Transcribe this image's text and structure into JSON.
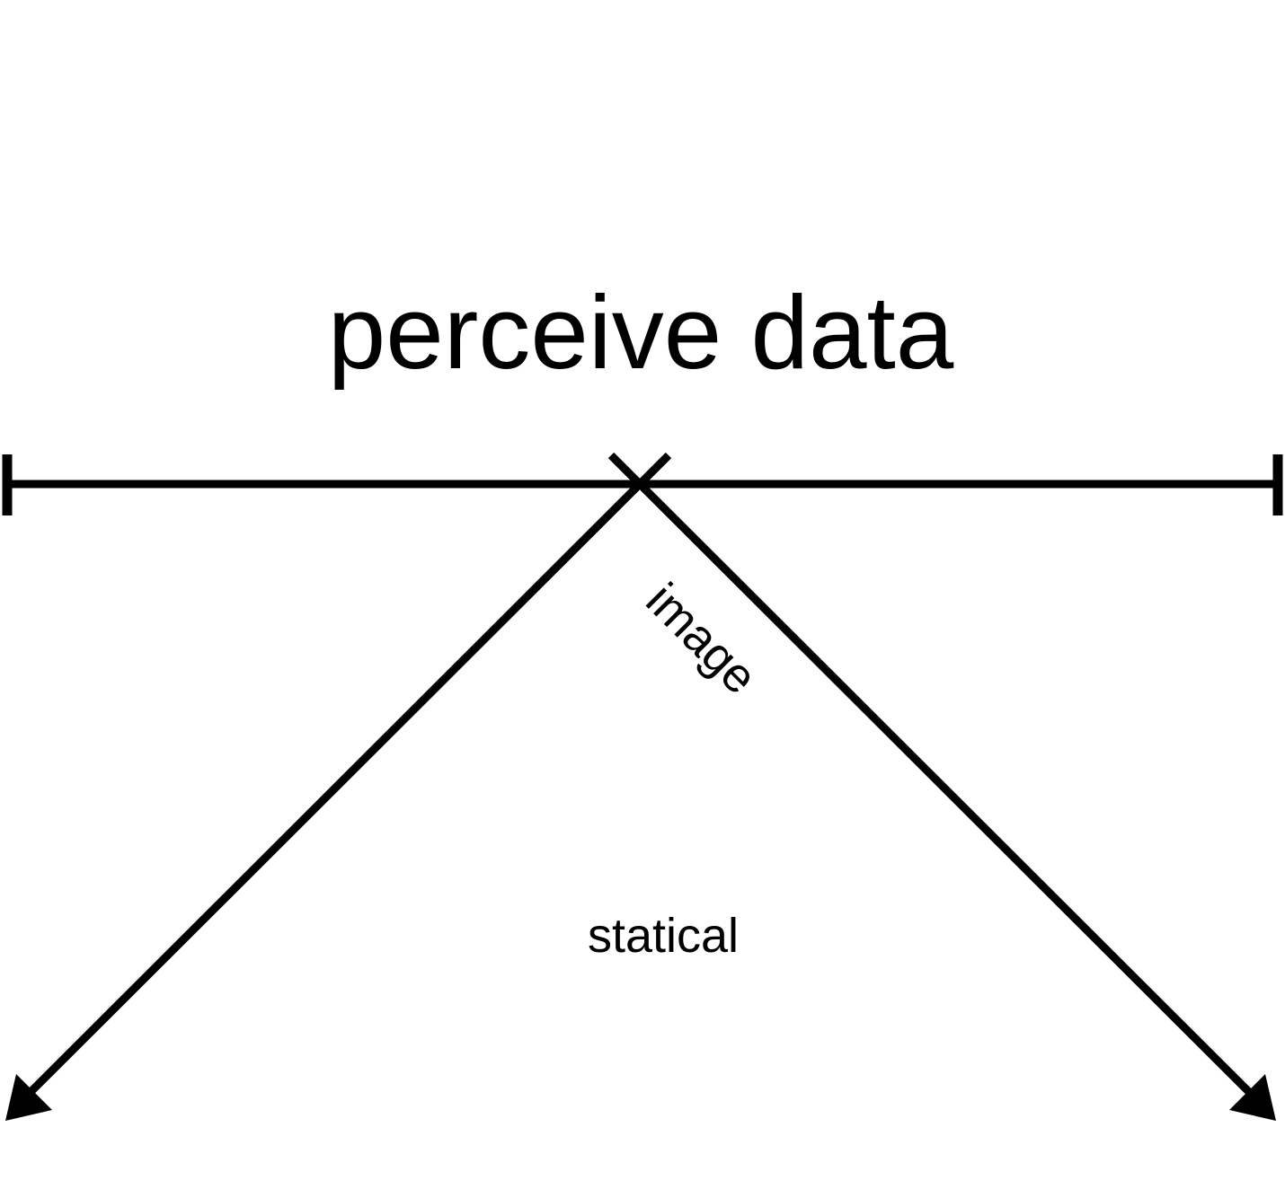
{
  "diagram": {
    "title": "perceive data",
    "labels": {
      "diagonal": "image",
      "center": "statical"
    },
    "colors": {
      "stroke": "#000000",
      "background": "#ffffff"
    }
  }
}
